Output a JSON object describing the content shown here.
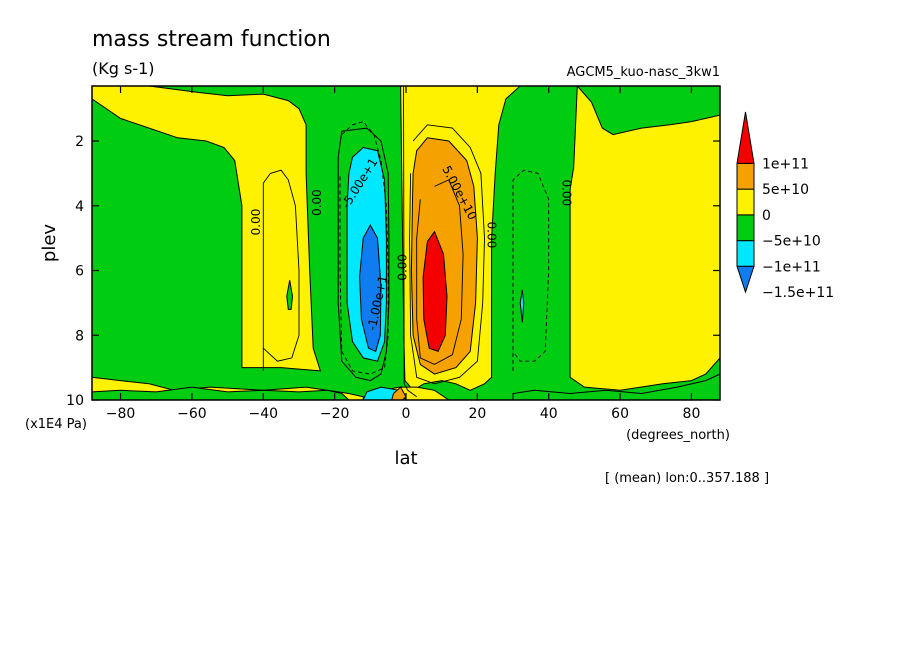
{
  "chart_data": {
    "type": "heatmap",
    "title": "mass stream function",
    "units": "(Kg s-1)",
    "experiment": "AGCM5_kuo-nasc_3kw1",
    "xlabel": "lat",
    "xunits": "(degrees_north)",
    "ylabel": "plev",
    "yunits": "(x1E4 Pa)",
    "footnote": "[ (mean) lon:0..357.188 ]",
    "xlim": [
      -88,
      88
    ],
    "ylim": [
      10,
      0.3
    ],
    "xticks": [
      {
        "v": -80,
        "label": "−80"
      },
      {
        "v": -60,
        "label": "−60"
      },
      {
        "v": -40,
        "label": "−40"
      },
      {
        "v": -20,
        "label": "−20"
      },
      {
        "v": 0,
        "label": "0"
      },
      {
        "v": 20,
        "label": "20"
      },
      {
        "v": 40,
        "label": "40"
      },
      {
        "v": 60,
        "label": "60"
      },
      {
        "v": 80,
        "label": "80"
      }
    ],
    "yticks": [
      {
        "v": 2,
        "label": "2"
      },
      {
        "v": 4,
        "label": "4"
      },
      {
        "v": 6,
        "label": "6"
      },
      {
        "v": 8,
        "label": "8"
      },
      {
        "v": 10,
        "label": "10"
      }
    ],
    "legend": {
      "placement": "right",
      "bins": [
        {
          "color": "#0f7cf0",
          "label": "−1.5e+11"
        },
        {
          "color": "#00e8ff",
          "label": "−1e+11"
        },
        {
          "color": "#00cc11",
          "label": "−5e+10"
        },
        {
          "color": "#fff200",
          "label": "0"
        },
        {
          "color": "#f5a100",
          "label": "5e+10"
        },
        {
          "color": "#f50000",
          "label": "1e+11"
        }
      ]
    },
    "contour_labels": [
      {
        "text": "-5.00e+1",
        "lat": -13,
        "p": 3.3,
        "rot": -58
      },
      {
        "text": "5.00e+10",
        "lat": 15,
        "p": 3.6,
        "rot": 62
      },
      {
        "text": "-1.00e+1",
        "lat": -8,
        "p": 7.0,
        "rot": -78
      },
      {
        "text": "0.00",
        "lat": -42,
        "p": 4.5,
        "rot": -90
      },
      {
        "text": "0.00",
        "lat": -25,
        "p": 3.9,
        "rot": -90
      },
      {
        "text": "0.00",
        "lat": -1,
        "p": 5.9,
        "rot": -90
      },
      {
        "text": "0.00",
        "lat": 24,
        "p": 4.9,
        "rot": 90
      },
      {
        "text": "0.00",
        "lat": 45,
        "p": 3.6,
        "rot": 90
      }
    ],
    "fields": [
      {
        "level": "0",
        "color": "#fff200",
        "polys": [
          [
            [
              -12,
              10
            ],
            [
              -12,
              9.9
            ],
            [
              -16,
              9.8
            ],
            [
              -28,
              9.6
            ],
            [
              -40,
              9.7
            ],
            [
              -55,
              9.6
            ],
            [
              -65,
              9.7
            ],
            [
              -72,
              9.5
            ],
            [
              -80,
              9.4
            ],
            [
              -88,
              9.3
            ],
            [
              -88,
              10
            ]
          ],
          [
            [
              -46,
              9.0
            ],
            [
              -46,
              4
            ],
            [
              -48,
              2.6
            ],
            [
              -51,
              2.2
            ],
            [
              -56,
              2.0
            ],
            [
              -64,
              1.9
            ],
            [
              -72,
              1.6
            ],
            [
              -80,
              1.3
            ],
            [
              -88,
              0.7
            ],
            [
              -88,
              0.3
            ],
            [
              -72,
              0.3
            ],
            [
              -65,
              0.4
            ],
            [
              -58,
              0.5
            ],
            [
              -50,
              0.6
            ],
            [
              -40,
              0.55
            ],
            [
              -33,
              0.75
            ],
            [
              -30,
              1.0
            ],
            [
              -28,
              1.5
            ],
            [
              -28,
              3
            ],
            [
              -27,
              6
            ],
            [
              -26,
              8.4
            ],
            [
              -24,
              9.1
            ],
            [
              -35,
              9.0
            ]
          ],
          [
            [
              -1.5,
              0.3
            ],
            [
              -0.6,
              8.2
            ],
            [
              -0.3,
              9.4
            ],
            [
              0.5,
              9.5
            ],
            [
              2,
              9.7
            ],
            [
              5,
              9.5
            ],
            [
              10,
              9.4
            ],
            [
              14,
              9.5
            ],
            [
              18,
              9.7
            ],
            [
              22,
              9.5
            ],
            [
              24,
              9.3
            ],
            [
              24,
              5
            ],
            [
              25,
              3
            ],
            [
              26,
              1.5
            ],
            [
              28,
              0.7
            ],
            [
              32,
              0.3
            ]
          ],
          [
            [
              48,
              0.3
            ],
            [
              52,
              0.8
            ],
            [
              55,
              1.6
            ],
            [
              58,
              1.8
            ],
            [
              66,
              1.6
            ],
            [
              74,
              1.5
            ],
            [
              80,
              1.4
            ],
            [
              88,
              1.2
            ],
            [
              88,
              8.7
            ],
            [
              84,
              9.2
            ],
            [
              80,
              9.4
            ],
            [
              72,
              9.5
            ],
            [
              60,
              9.7
            ],
            [
              50,
              9.6
            ],
            [
              46,
              9.3
            ],
            [
              46,
              3.5
            ],
            [
              47,
              2.8
            ]
          ],
          [
            [
              -6,
              10
            ],
            [
              -6,
              9.7
            ],
            [
              -2,
              9.6
            ],
            [
              3,
              9.6
            ],
            [
              8,
              9.7
            ],
            [
              12,
              10
            ]
          ]
        ]
      },
      {
        "level": "0",
        "color": "#00cc11",
        "polys": [
          [
            [
              -88,
              10
            ],
            [
              -88,
              9.75
            ],
            [
              -80,
              9.7
            ],
            [
              -70,
              9.75
            ],
            [
              -60,
              9.6
            ],
            [
              -50,
              9.75
            ],
            [
              -40,
              9.7
            ],
            [
              -30,
              9.75
            ],
            [
              -22,
              9.7
            ],
            [
              -18,
              9.8
            ],
            [
              -16,
              10
            ]
          ],
          [
            [
              30,
              10
            ],
            [
              30,
              9.8
            ],
            [
              36,
              9.7
            ],
            [
              46,
              9.8
            ],
            [
              56,
              9.7
            ],
            [
              66,
              9.8
            ],
            [
              76,
              9.6
            ],
            [
              84,
              9.4
            ],
            [
              88,
              9.2
            ],
            [
              88,
              10
            ]
          ],
          [
            [
              -18,
              1.7
            ],
            [
              -11,
              1.6
            ],
            [
              -7,
              2.0
            ],
            [
              -5,
              3
            ],
            [
              -4.8,
              5
            ],
            [
              -4.8,
              7
            ],
            [
              -5.5,
              8.5
            ],
            [
              -7,
              9.2
            ],
            [
              -10,
              9.4
            ],
            [
              -14,
              9.3
            ],
            [
              -18,
              8.8
            ],
            [
              -19,
              7
            ],
            [
              -19,
              4
            ],
            [
              -19,
              2.5
            ]
          ]
        ]
      },
      {
        "level": "-5e+10",
        "color": "#00e8ff",
        "polys": [
          [
            [
              -15,
              2.5
            ],
            [
              -12,
              2.2
            ],
            [
              -8,
              2.3
            ],
            [
              -6,
              3.2
            ],
            [
              -5.5,
              5
            ],
            [
              -5.5,
              7
            ],
            [
              -6,
              8.2
            ],
            [
              -8,
              8.8
            ],
            [
              -12,
              8.7
            ],
            [
              -15,
              8.2
            ],
            [
              -16.5,
              7
            ],
            [
              -16.5,
              4
            ],
            [
              -16,
              3
            ]
          ],
          [
            [
              -11,
              9.75
            ],
            [
              -7,
              9.6
            ],
            [
              -2,
              9.7
            ],
            [
              0,
              10
            ],
            [
              -12,
              10
            ]
          ],
          [
            [
              32,
              7.0
            ],
            [
              32.6,
              6.6
            ],
            [
              33,
              7.0
            ],
            [
              32.6,
              7.6
            ]
          ]
        ]
      },
      {
        "level": "-1e+11",
        "color": "#0f7cf0",
        "polys": [
          [
            [
              -12,
              5.0
            ],
            [
              -10,
              4.6
            ],
            [
              -8,
              5.0
            ],
            [
              -7,
              6.5
            ],
            [
              -7.2,
              8.0
            ],
            [
              -8.5,
              8.5
            ],
            [
              -10.5,
              8.4
            ],
            [
              -12.5,
              7.5
            ],
            [
              -13,
              6.2
            ]
          ]
        ]
      },
      {
        "level": "5e+10",
        "color": "#f5a100",
        "polys": [
          [
            [
              3,
              2.3
            ],
            [
              6,
              1.9
            ],
            [
              12,
              2.0
            ],
            [
              17,
              2.6
            ],
            [
              19,
              3.4
            ],
            [
              20,
              5
            ],
            [
              19.5,
              7
            ],
            [
              18,
              8.5
            ],
            [
              14,
              9.0
            ],
            [
              8,
              9.2
            ],
            [
              4,
              8.9
            ],
            [
              2,
              8.0
            ],
            [
              1.5,
              6
            ],
            [
              1.8,
              4
            ],
            [
              2,
              3
            ]
          ],
          [
            [
              -3.5,
              9.8
            ],
            [
              -1.5,
              9.6
            ],
            [
              0,
              9.9
            ],
            [
              -1,
              10
            ],
            [
              -4,
              10
            ]
          ]
        ]
      },
      {
        "level": "1e+11",
        "color": "#f50000",
        "polys": [
          [
            [
              6,
              5.1
            ],
            [
              8,
              4.8
            ],
            [
              10.5,
              5.5
            ],
            [
              11.5,
              6.8
            ],
            [
              11,
              8.0
            ],
            [
              9,
              8.5
            ],
            [
              6.5,
              8.4
            ],
            [
              5,
              7.5
            ],
            [
              4.8,
              6.2
            ]
          ]
        ]
      },
      {
        "level": "other",
        "color": "#00cc11",
        "polys": [
          [
            [
              -33.4,
              6.8
            ],
            [
              -32.6,
              6.3
            ],
            [
              -31.8,
              6.8
            ],
            [
              -32.2,
              7.2
            ],
            [
              -33,
              7.2
            ]
          ]
        ]
      }
    ],
    "contour_lines": [
      {
        "style": "solid",
        "pts": [
          [
            -40,
            9.1
          ],
          [
            -40,
            3.3
          ],
          [
            -38,
            3.0
          ],
          [
            -35,
            2.9
          ],
          [
            -33,
            3.2
          ],
          [
            -31,
            4
          ],
          [
            -30,
            6
          ],
          [
            -30,
            8
          ],
          [
            -32,
            8.7
          ],
          [
            -36,
            8.8
          ],
          [
            -40,
            8.4
          ]
        ]
      },
      {
        "style": "dashed",
        "pts": [
          [
            -18,
            1.8
          ],
          [
            -15,
            1.5
          ],
          [
            -12,
            1.4
          ],
          [
            -9,
            1.8
          ],
          [
            -7,
            2.6
          ],
          [
            -5.5,
            4
          ],
          [
            -5,
            6
          ],
          [
            -5,
            8
          ],
          [
            -6,
            9.0
          ],
          [
            -10,
            9.2
          ],
          [
            -15,
            9.1
          ],
          [
            -18,
            8.5
          ],
          [
            -18.5,
            6
          ],
          [
            -18.5,
            3
          ]
        ]
      },
      {
        "style": "dashed",
        "pts": [
          [
            30,
            9.1
          ],
          [
            30,
            3.2
          ],
          [
            33,
            2.9
          ],
          [
            37,
            3.0
          ],
          [
            40,
            3.8
          ],
          [
            40,
            6
          ],
          [
            39,
            8.5
          ],
          [
            36,
            8.8
          ],
          [
            32,
            8.8
          ],
          [
            30,
            8.5
          ]
        ]
      },
      {
        "style": "solid",
        "pts": [
          [
            2,
            2.0
          ],
          [
            6,
            1.5
          ],
          [
            13,
            1.6
          ],
          [
            18,
            2.2
          ],
          [
            21,
            3.0
          ],
          [
            22,
            5
          ],
          [
            21.5,
            7
          ],
          [
            20,
            8.8
          ],
          [
            15,
            9.3
          ],
          [
            8,
            9.5
          ],
          [
            3,
            9.3
          ],
          [
            1.3,
            8.0
          ],
          [
            1,
            5
          ],
          [
            1.3,
            3
          ]
        ]
      },
      {
        "style": "solid",
        "pts": [
          [
            8,
            3.4
          ],
          [
            12,
            3.2
          ],
          [
            15,
            4.0
          ],
          [
            16,
            5.5
          ],
          [
            15.5,
            7.5
          ],
          [
            13,
            8.6
          ],
          [
            8,
            8.9
          ],
          [
            4,
            8.7
          ],
          [
            3,
            7.5
          ],
          [
            3,
            5
          ],
          [
            4,
            3.8
          ]
        ]
      },
      {
        "style": "solid",
        "pts": [
          [
            -0.7,
            0.3
          ],
          [
            -0.5,
            9.5
          ],
          [
            0.5,
            9.7
          ],
          [
            3,
            9.9
          ]
        ]
      }
    ]
  }
}
